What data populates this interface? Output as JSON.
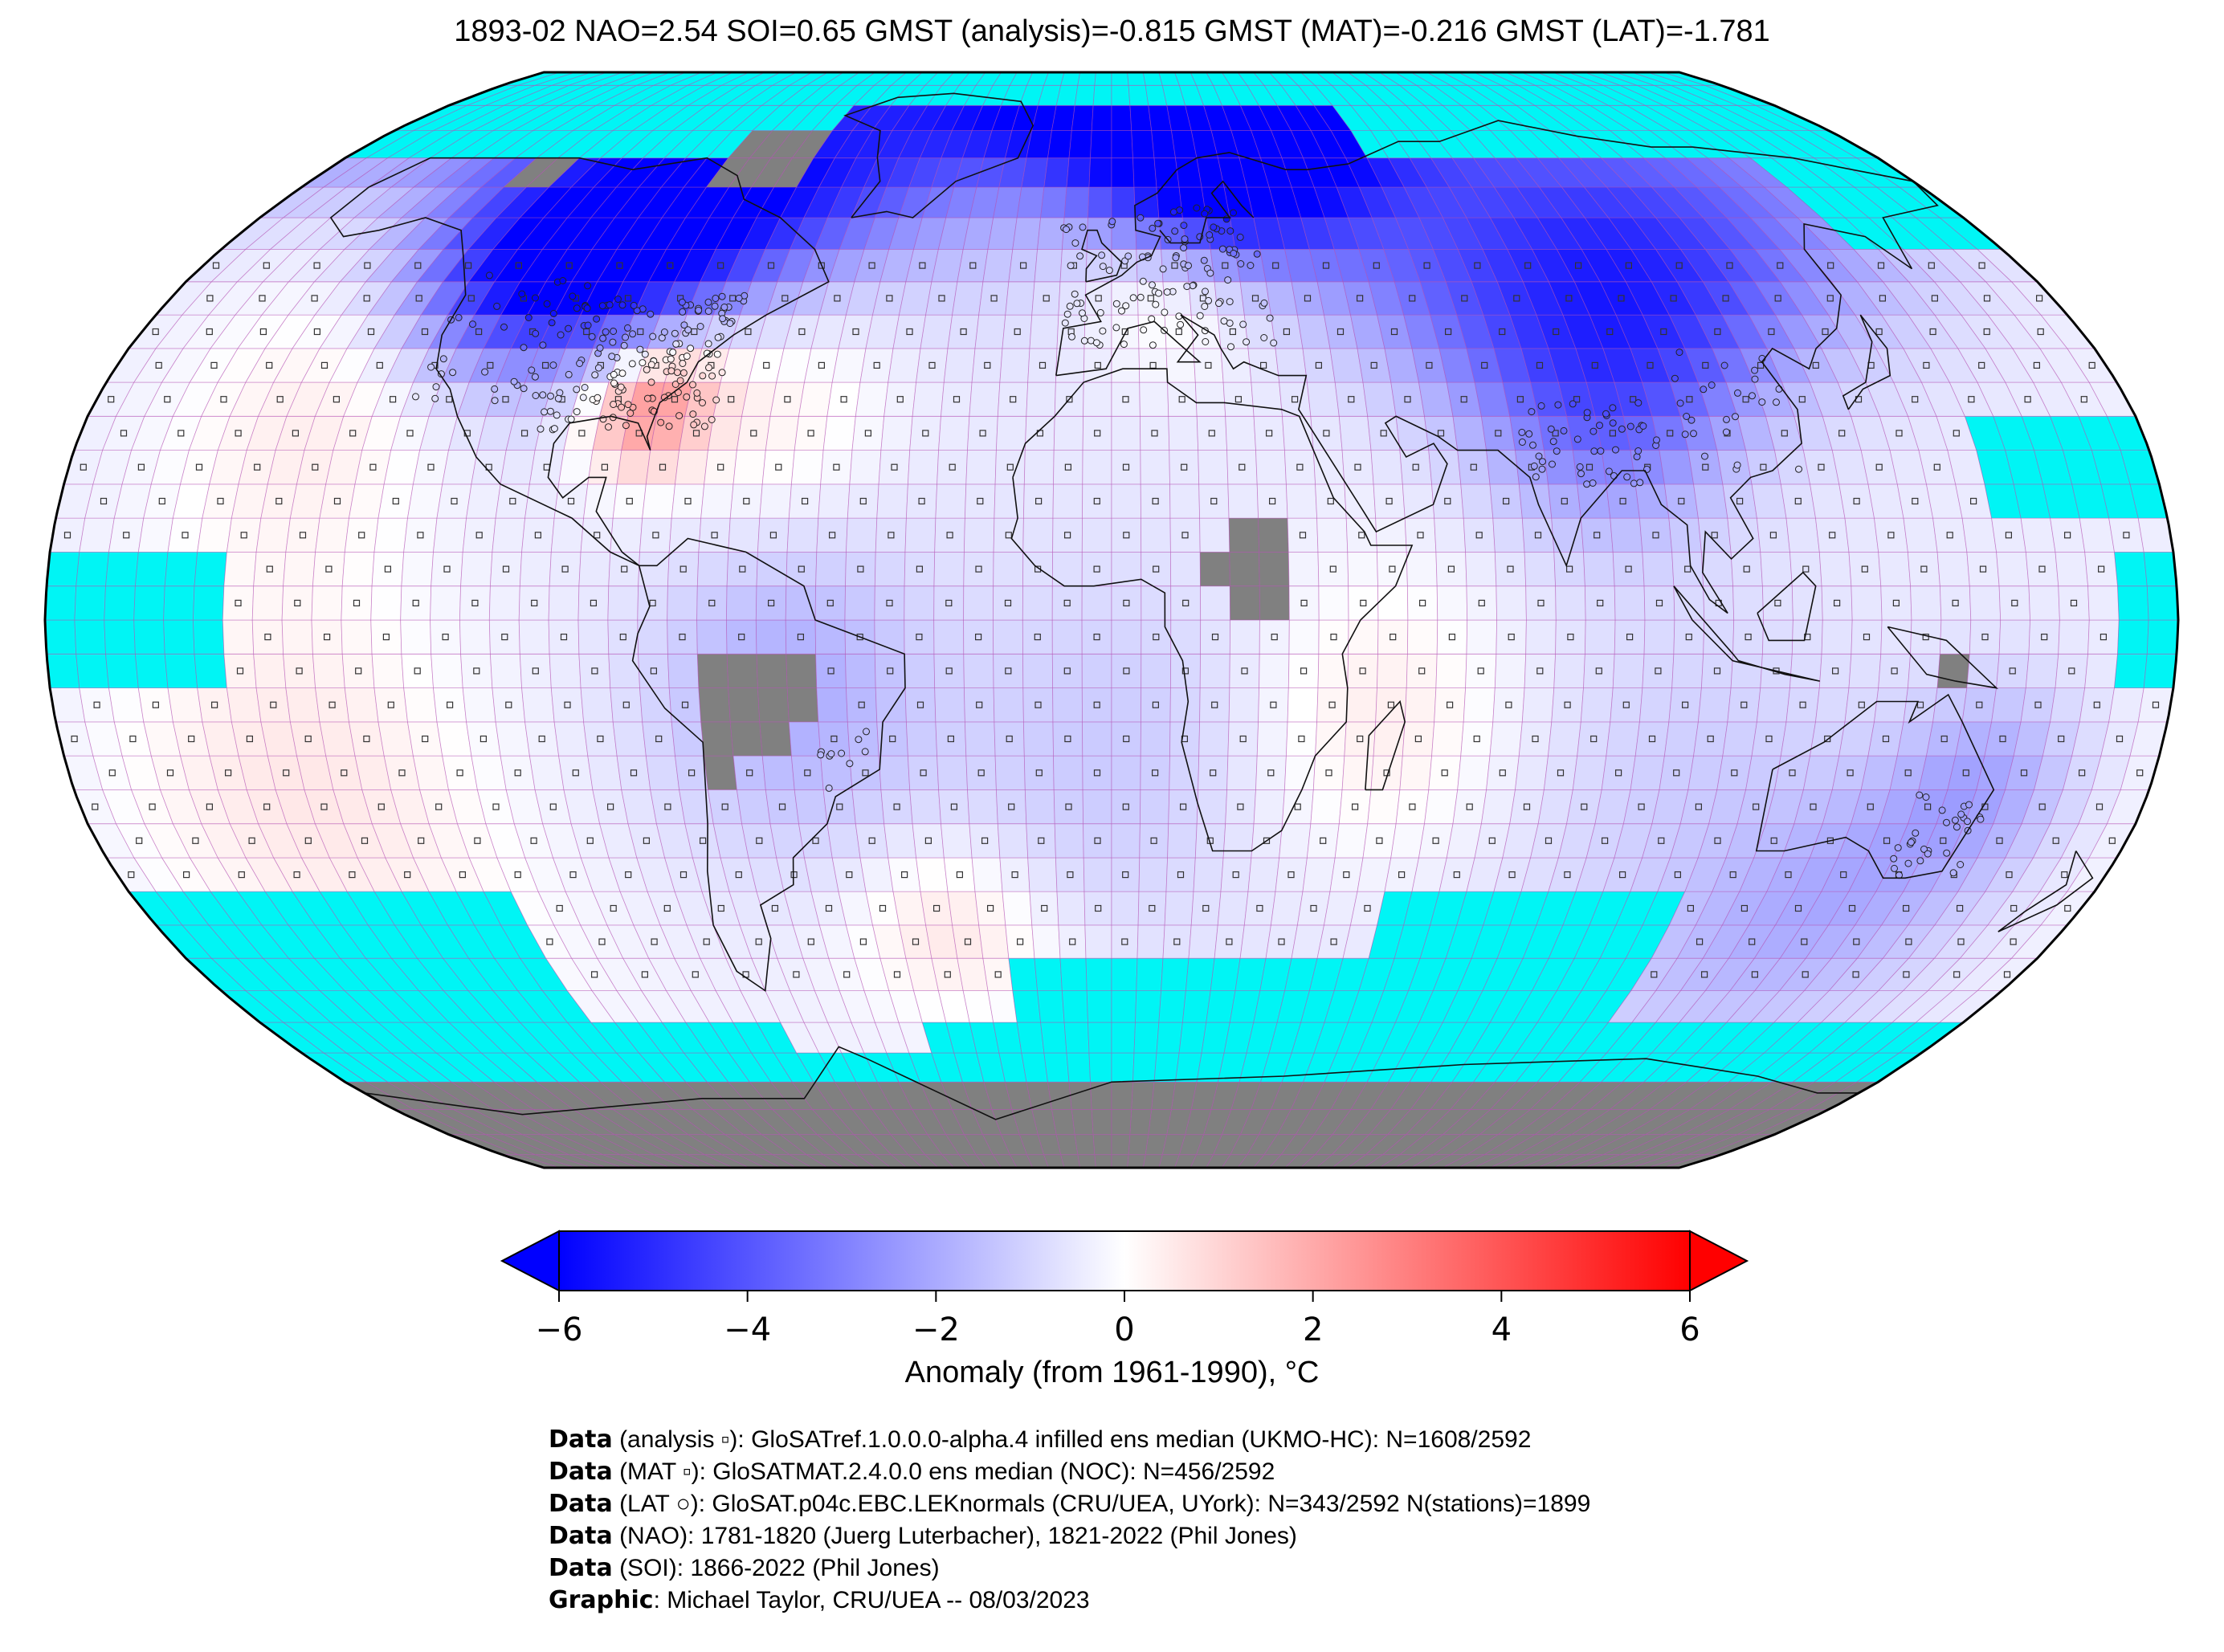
{
  "title": "1893-02 NAO=2.54 SOI=0.65 GMST (analysis)=-0.815 GMST (MAT)=-0.216 GMST (LAT)=-1.781",
  "colors": {
    "no_data": "#00f5f5",
    "land_mask": "#808080",
    "grid_line": "#b24fb2",
    "cold": "#0000ff",
    "warm": "#ff0000",
    "neutral": "#ffffff"
  },
  "map": {
    "projection": "Robinson",
    "grid_resolution_deg": 5
  },
  "colorbar": {
    "range": [
      -6,
      6
    ],
    "ticks": [
      "−6",
      "−4",
      "−2",
      "0",
      "2",
      "4",
      "6"
    ],
    "label": "Anomaly (from 1961-1990), °C",
    "extend": "both"
  },
  "credits": [
    {
      "key": "Data",
      "text": " (analysis ▫): GloSATref.1.0.0.0-alpha.4 infilled ens median (UKMO-HC): N=1608/2592"
    },
    {
      "key": "Data",
      "text": " (MAT ▫): GloSATMAT.2.4.0.0 ens median (NOC): N=456/2592"
    },
    {
      "key": "Data",
      "text": " (LAT ○): GloSAT.p04c.EBC.LEKnormals (CRU/UEA, UYork): N=343/2592 N(stations)=1899"
    },
    {
      "key": "Data",
      "text": " (NAO): 1781-1820 (Juerg Luterbacher), 1821-2022 (Phil Jones)"
    },
    {
      "key": "Data",
      "text": " (SOI): 1866-2022 (Phil Jones)"
    },
    {
      "key": "Graphic",
      "text": ": Michael Taylor, CRU/UEA -- 08/03/2023"
    }
  ]
}
